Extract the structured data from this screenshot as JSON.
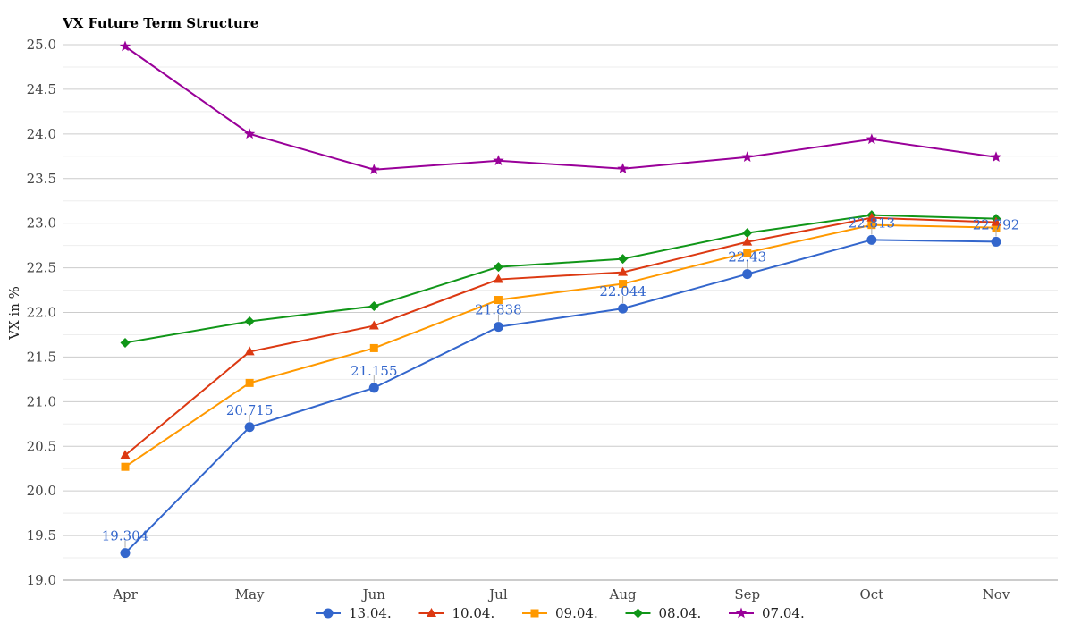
{
  "chart_data": {
    "type": "line",
    "title": "VX Future Term Structure",
    "xlabel": "",
    "ylabel": "VX in %",
    "categories": [
      "Apr",
      "May",
      "Jun",
      "Jul",
      "Aug",
      "Sep",
      "Oct",
      "Nov"
    ],
    "ylim": [
      19.0,
      25.0
    ],
    "yticks": [
      "19.0",
      "19.5",
      "20.0",
      "20.5",
      "21.0",
      "21.5",
      "22.0",
      "22.5",
      "23.0",
      "23.5",
      "24.0",
      "24.5",
      "25.0"
    ],
    "grid": true,
    "legend_position": "bottom",
    "series": [
      {
        "name": "13.04.",
        "color": "#3366cc",
        "marker": "circle",
        "values": [
          19.304,
          20.715,
          21.155,
          21.838,
          22.044,
          22.43,
          22.813,
          22.792
        ],
        "data_labels": [
          "19.304",
          "20.715",
          "21.155",
          "21.838",
          "22.044",
          "22.43",
          "22.813",
          "22.792"
        ]
      },
      {
        "name": "10.04.",
        "color": "#dc3912",
        "marker": "triangle",
        "values": [
          20.4,
          21.56,
          21.85,
          22.37,
          22.45,
          22.79,
          23.06,
          23.01
        ]
      },
      {
        "name": "09.04.",
        "color": "#ff9900",
        "marker": "square",
        "values": [
          20.27,
          21.21,
          21.6,
          22.14,
          22.32,
          22.67,
          22.98,
          22.95
        ]
      },
      {
        "name": "08.04.",
        "color": "#109618",
        "marker": "diamond",
        "values": [
          21.66,
          21.9,
          22.07,
          22.51,
          22.6,
          22.89,
          23.09,
          23.05
        ]
      },
      {
        "name": "07.04.",
        "color": "#990099",
        "marker": "star",
        "values": [
          24.98,
          24.0,
          23.6,
          23.7,
          23.61,
          23.74,
          23.94,
          23.74
        ]
      }
    ]
  }
}
